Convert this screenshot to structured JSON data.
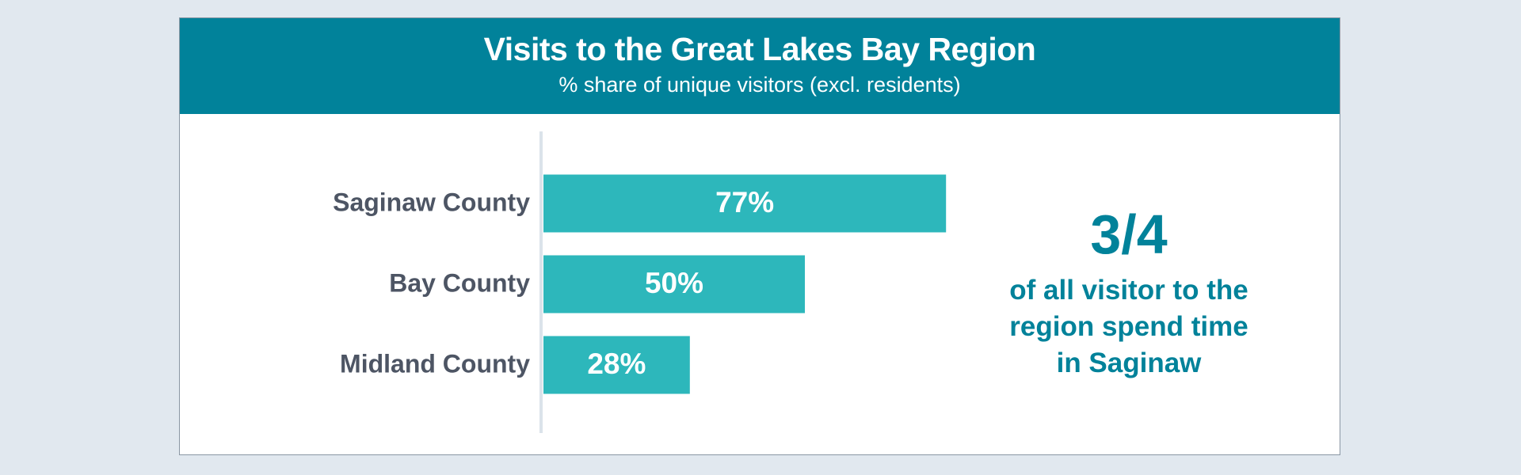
{
  "chart_data": {
    "type": "bar",
    "orientation": "horizontal",
    "title": "Visits to the Great Lakes Bay Region",
    "subtitle": "% share of unique visitors (excl. residents)",
    "categories": [
      "Saginaw County",
      "Bay County",
      "Midland County"
    ],
    "values": [
      77,
      50,
      28
    ],
    "value_labels": [
      "77%",
      "50%",
      "28%"
    ],
    "unit": "%",
    "xlim": [
      0,
      100
    ],
    "grid": false,
    "legend": "none",
    "colors": {
      "bar": "#2db7bb",
      "banner": "#01829a",
      "axis": "#dbe3ea",
      "category_text": "#4d5564",
      "callout_text": "#01829a"
    }
  },
  "callout": {
    "big": "3/4",
    "lines": [
      "of all visitor to the",
      "region spend time",
      "in Saginaw"
    ]
  }
}
